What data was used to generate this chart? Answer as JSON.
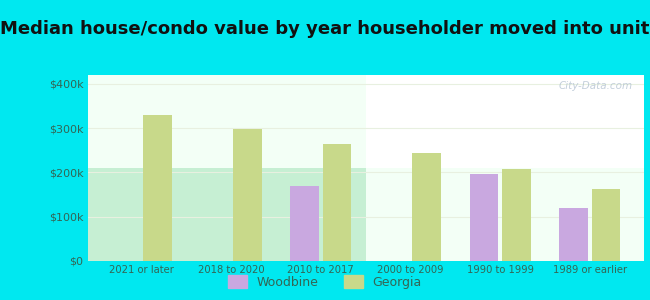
{
  "title": "Median house/condo value by year householder moved into unit",
  "categories": [
    "2021 or later",
    "2018 to 2020",
    "2010 to 2017",
    "2000 to 2009",
    "1990 to 1999",
    "1989 or earlier"
  ],
  "woodbine_values": [
    null,
    null,
    170000,
    null,
    197000,
    120000
  ],
  "georgia_values": [
    330000,
    298000,
    265000,
    243000,
    208000,
    163000
  ],
  "woodbine_color": "#c9a8e0",
  "georgia_color": "#c8d98a",
  "background_outer": "#00e8f0",
  "title_color": "#111111",
  "title_fontsize": 13,
  "ylabel_ticks": [
    "$0",
    "$100k",
    "$200k",
    "$300k",
    "$400k"
  ],
  "ytick_values": [
    0,
    100000,
    200000,
    300000,
    400000
  ],
  "ylim": [
    0,
    420000
  ],
  "bar_width": 0.32,
  "watermark": "City-Data.com",
  "tick_color": "#336655",
  "grid_color": "#e8f0e0",
  "plot_bg_top": "#f8fff8",
  "plot_bg_bottom": "#c8f0d0"
}
